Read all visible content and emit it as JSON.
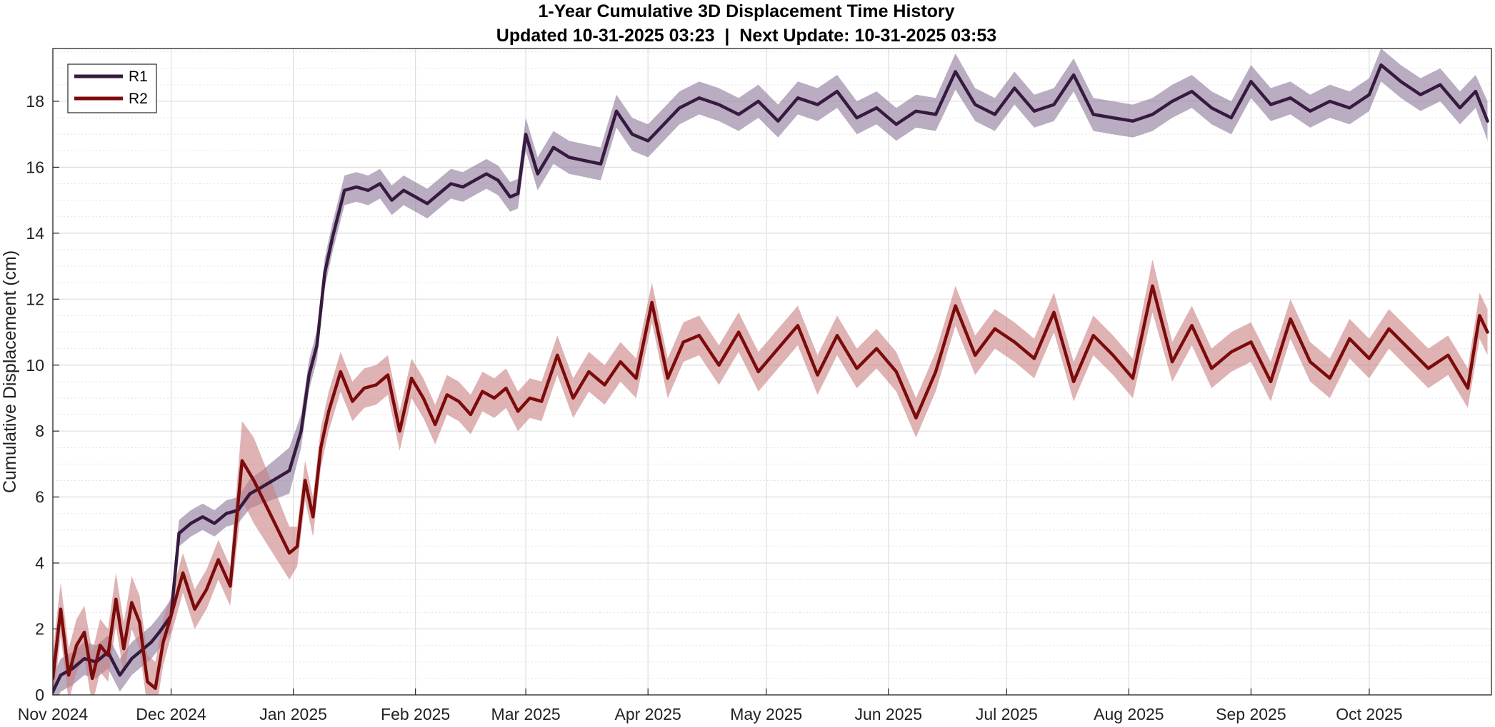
{
  "chart_data": {
    "type": "line",
    "title": "1-Year Cumulative 3D Displacement Time History",
    "subtitle": "Updated 10-31-2025 03:23  |  Next Update: 10-31-2025 03:53",
    "xlabel": "",
    "ylabel": "Cumulative Displacement (cm)",
    "xlim": [
      "2024-11-01",
      "2025-11-01"
    ],
    "ylim": [
      0,
      19.6
    ],
    "x_ticks": [
      "Nov 2024",
      "Dec 2024",
      "Jan 2025",
      "Feb 2025",
      "Mar 2025",
      "Apr 2025",
      "May 2025",
      "Jun 2025",
      "Jul 2025",
      "Aug 2025",
      "Sep 2025",
      "Oct 2025"
    ],
    "y_ticks": [
      0,
      2,
      4,
      6,
      8,
      10,
      12,
      14,
      16,
      18
    ],
    "grid": true,
    "minor_grid": true,
    "legend_position": "top-left",
    "series": [
      {
        "name": "R1",
        "color": "#361a3f",
        "band_color": "#8c7699",
        "x": [
          "2024-11-01",
          "2024-11-03",
          "2024-11-06",
          "2024-11-09",
          "2024-11-12",
          "2024-11-15",
          "2024-11-18",
          "2024-11-21",
          "2024-11-24",
          "2024-11-26",
          "2024-11-28",
          "2024-12-01",
          "2024-12-03",
          "2024-12-06",
          "2024-12-09",
          "2024-12-12",
          "2024-12-15",
          "2024-12-18",
          "2024-12-21",
          "2024-12-24",
          "2024-12-31",
          "2025-01-03",
          "2025-01-05",
          "2025-01-07",
          "2025-01-09",
          "2025-01-11",
          "2025-01-14",
          "2025-01-17",
          "2025-01-20",
          "2025-01-23",
          "2025-01-26",
          "2025-01-29",
          "2025-02-01",
          "2025-02-04",
          "2025-02-07",
          "2025-02-10",
          "2025-02-13",
          "2025-02-16",
          "2025-02-19",
          "2025-02-22",
          "2025-02-25",
          "2025-02-27",
          "2025-03-01",
          "2025-03-04",
          "2025-03-08",
          "2025-03-12",
          "2025-03-16",
          "2025-03-20",
          "2025-03-24",
          "2025-03-28",
          "2025-04-01",
          "2025-04-05",
          "2025-04-09",
          "2025-04-14",
          "2025-04-19",
          "2025-04-24",
          "2025-04-29",
          "2025-05-04",
          "2025-05-09",
          "2025-05-14",
          "2025-05-19",
          "2025-05-24",
          "2025-05-29",
          "2025-06-03",
          "2025-06-08",
          "2025-06-13",
          "2025-06-18",
          "2025-06-23",
          "2025-06-28",
          "2025-07-03",
          "2025-07-08",
          "2025-07-13",
          "2025-07-18",
          "2025-07-23",
          "2025-07-28",
          "2025-08-02",
          "2025-08-07",
          "2025-08-12",
          "2025-08-17",
          "2025-08-22",
          "2025-08-27",
          "2025-09-01",
          "2025-09-06",
          "2025-09-11",
          "2025-09-16",
          "2025-09-21",
          "2025-09-26",
          "2025-10-01",
          "2025-10-04",
          "2025-10-09",
          "2025-10-14",
          "2025-10-19",
          "2025-10-24",
          "2025-10-28",
          "2025-10-31"
        ],
        "values": [
          0.1,
          0.6,
          0.8,
          1.1,
          1.0,
          1.3,
          0.6,
          1.1,
          1.4,
          1.6,
          1.9,
          2.4,
          4.9,
          5.2,
          5.4,
          5.2,
          5.5,
          5.6,
          6.1,
          6.3,
          6.8,
          8.0,
          9.7,
          10.6,
          12.8,
          13.9,
          15.3,
          15.4,
          15.3,
          15.5,
          15.0,
          15.3,
          15.1,
          14.9,
          15.2,
          15.5,
          15.4,
          15.6,
          15.8,
          15.6,
          15.1,
          15.2,
          17.0,
          15.8,
          16.6,
          16.3,
          16.2,
          16.1,
          17.7,
          17.0,
          16.8,
          17.3,
          17.8,
          18.1,
          17.9,
          17.6,
          18.0,
          17.4,
          18.1,
          17.9,
          18.3,
          17.5,
          17.8,
          17.3,
          17.7,
          17.6,
          18.9,
          17.9,
          17.6,
          18.4,
          17.7,
          17.9,
          18.8,
          17.6,
          17.5,
          17.4,
          17.6,
          18.0,
          18.3,
          17.8,
          17.5,
          18.6,
          17.9,
          18.1,
          17.7,
          18.0,
          17.8,
          18.2,
          19.1,
          18.6,
          18.2,
          18.5,
          17.8,
          18.3,
          17.4
        ],
        "band_halfwidth": [
          0.5,
          0.5,
          0.5,
          0.5,
          0.5,
          0.5,
          0.5,
          0.5,
          0.5,
          0.5,
          0.5,
          0.5,
          0.4,
          0.4,
          0.4,
          0.4,
          0.4,
          0.4,
          0.45,
          0.5,
          0.7,
          0.5,
          0.45,
          0.45,
          0.45,
          0.45,
          0.45,
          0.45,
          0.45,
          0.45,
          0.45,
          0.45,
          0.45,
          0.45,
          0.45,
          0.45,
          0.45,
          0.45,
          0.45,
          0.45,
          0.45,
          0.45,
          0.5,
          0.5,
          0.5,
          0.5,
          0.5,
          0.5,
          0.5,
          0.5,
          0.5,
          0.5,
          0.5,
          0.5,
          0.5,
          0.5,
          0.5,
          0.5,
          0.5,
          0.5,
          0.5,
          0.5,
          0.5,
          0.5,
          0.5,
          0.5,
          0.55,
          0.5,
          0.5,
          0.5,
          0.5,
          0.5,
          0.5,
          0.5,
          0.5,
          0.5,
          0.5,
          0.5,
          0.5,
          0.5,
          0.5,
          0.5,
          0.5,
          0.5,
          0.5,
          0.5,
          0.5,
          0.5,
          0.5,
          0.5,
          0.5,
          0.5,
          0.5,
          0.5,
          0.6
        ]
      },
      {
        "name": "R2",
        "color": "#7c0b0b",
        "band_color": "#c97f80",
        "x": [
          "2024-11-01",
          "2024-11-03",
          "2024-11-05",
          "2024-11-07",
          "2024-11-09",
          "2024-11-11",
          "2024-11-13",
          "2024-11-15",
          "2024-11-17",
          "2024-11-19",
          "2024-11-21",
          "2024-11-23",
          "2024-11-25",
          "2024-11-27",
          "2024-11-29",
          "2024-12-01",
          "2024-12-04",
          "2024-12-07",
          "2024-12-10",
          "2024-12-13",
          "2024-12-16",
          "2024-12-19",
          "2024-12-22",
          "2024-12-31",
          "2025-01-02",
          "2025-01-04",
          "2025-01-06",
          "2025-01-08",
          "2025-01-10",
          "2025-01-13",
          "2025-01-16",
          "2025-01-19",
          "2025-01-22",
          "2025-01-25",
          "2025-01-28",
          "2025-01-31",
          "2025-02-03",
          "2025-02-06",
          "2025-02-09",
          "2025-02-12",
          "2025-02-15",
          "2025-02-18",
          "2025-02-21",
          "2025-02-24",
          "2025-02-27",
          "2025-03-02",
          "2025-03-05",
          "2025-03-09",
          "2025-03-13",
          "2025-03-17",
          "2025-03-21",
          "2025-03-25",
          "2025-03-29",
          "2025-04-02",
          "2025-04-06",
          "2025-04-10",
          "2025-04-14",
          "2025-04-19",
          "2025-04-24",
          "2025-04-29",
          "2025-05-04",
          "2025-05-09",
          "2025-05-14",
          "2025-05-19",
          "2025-05-24",
          "2025-05-29",
          "2025-06-03",
          "2025-06-08",
          "2025-06-13",
          "2025-06-18",
          "2025-06-23",
          "2025-06-28",
          "2025-07-03",
          "2025-07-08",
          "2025-07-13",
          "2025-07-18",
          "2025-07-23",
          "2025-07-28",
          "2025-08-02",
          "2025-08-07",
          "2025-08-12",
          "2025-08-17",
          "2025-08-22",
          "2025-08-27",
          "2025-09-01",
          "2025-09-06",
          "2025-09-11",
          "2025-09-16",
          "2025-09-21",
          "2025-09-26",
          "2025-10-01",
          "2025-10-06",
          "2025-10-11",
          "2025-10-16",
          "2025-10-21",
          "2025-10-26",
          "2025-10-29",
          "2025-10-31"
        ],
        "values": [
          0.5,
          2.6,
          0.6,
          1.5,
          1.9,
          0.5,
          1.5,
          1.2,
          2.9,
          1.4,
          2.8,
          2.2,
          0.4,
          0.2,
          1.6,
          2.4,
          3.7,
          2.6,
          3.2,
          4.1,
          3.3,
          7.1,
          6.5,
          4.3,
          4.5,
          6.5,
          5.4,
          7.5,
          8.6,
          9.8,
          8.9,
          9.3,
          9.4,
          9.7,
          8.0,
          9.6,
          9.0,
          8.2,
          9.1,
          8.9,
          8.5,
          9.2,
          9.0,
          9.3,
          8.6,
          9.0,
          8.9,
          10.3,
          9.0,
          9.8,
          9.4,
          10.1,
          9.6,
          11.9,
          9.6,
          10.7,
          10.9,
          10.0,
          11.0,
          9.8,
          10.5,
          11.2,
          9.7,
          10.9,
          9.9,
          10.5,
          9.8,
          8.4,
          9.8,
          11.8,
          10.3,
          11.1,
          10.7,
          10.2,
          11.6,
          9.5,
          10.9,
          10.3,
          9.6,
          12.4,
          10.1,
          11.2,
          9.9,
          10.4,
          10.7,
          9.5,
          11.4,
          10.1,
          9.6,
          10.8,
          10.2,
          11.1,
          10.5,
          9.9,
          10.3,
          9.3,
          11.5,
          11.0
        ],
        "band_halfwidth": [
          0.8,
          0.8,
          0.8,
          0.8,
          0.8,
          0.8,
          0.8,
          0.8,
          0.8,
          0.8,
          0.8,
          0.8,
          0.8,
          0.8,
          0.7,
          0.6,
          0.6,
          0.6,
          0.6,
          0.6,
          0.6,
          1.2,
          1.3,
          0.8,
          0.6,
          0.6,
          0.6,
          0.6,
          0.6,
          0.6,
          0.6,
          0.6,
          0.6,
          0.6,
          0.6,
          0.6,
          0.6,
          0.6,
          0.6,
          0.6,
          0.6,
          0.6,
          0.6,
          0.6,
          0.6,
          0.6,
          0.6,
          0.6,
          0.6,
          0.6,
          0.6,
          0.6,
          0.6,
          0.6,
          0.6,
          0.6,
          0.6,
          0.6,
          0.6,
          0.6,
          0.6,
          0.6,
          0.6,
          0.6,
          0.6,
          0.6,
          0.6,
          0.6,
          0.6,
          0.6,
          0.6,
          0.6,
          0.6,
          0.6,
          0.6,
          0.6,
          0.6,
          0.6,
          0.6,
          0.8,
          0.6,
          0.6,
          0.6,
          0.6,
          0.6,
          0.6,
          0.6,
          0.6,
          0.6,
          0.6,
          0.6,
          0.6,
          0.6,
          0.6,
          0.6,
          0.6,
          0.7,
          0.7
        ]
      }
    ]
  }
}
